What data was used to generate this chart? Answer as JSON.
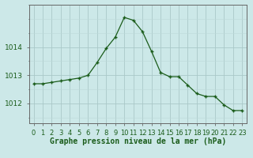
{
  "x": [
    0,
    1,
    2,
    3,
    4,
    5,
    6,
    7,
    8,
    9,
    10,
    11,
    12,
    13,
    14,
    15,
    16,
    17,
    18,
    19,
    20,
    21,
    22,
    23
  ],
  "y": [
    1012.7,
    1012.7,
    1012.75,
    1012.8,
    1012.85,
    1012.9,
    1013.0,
    1013.45,
    1013.95,
    1014.35,
    1015.05,
    1014.95,
    1014.55,
    1013.85,
    1013.1,
    1012.95,
    1012.95,
    1012.65,
    1012.35,
    1012.25,
    1012.25,
    1011.95,
    1011.75,
    1011.75
  ],
  "line_color": "#1a5c1a",
  "marker_color": "#1a5c1a",
  "bg_color": "#cce8e8",
  "grid_color_major": "#aac8c8",
  "grid_color_minor": "#bcd8d8",
  "xlabel": "Graphe pression niveau de la mer (hPa)",
  "xlabel_color": "#1a5c1a",
  "yticks": [
    1012,
    1013,
    1014
  ],
  "ylim": [
    1011.3,
    1015.5
  ],
  "xlim": [
    -0.5,
    23.5
  ],
  "tick_color": "#1a5c1a",
  "axis_color": "#666666",
  "font_size_xlabel": 7.0,
  "font_size_ytick": 6.5,
  "font_size_xtick": 6.0
}
